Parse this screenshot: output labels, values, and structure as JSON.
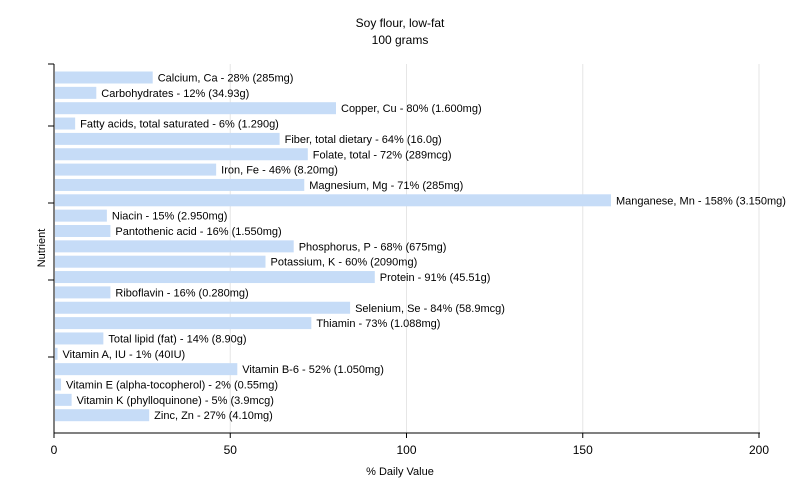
{
  "chart_data": {
    "type": "bar",
    "orientation": "horizontal",
    "title": "Soy flour, low-fat",
    "subtitle": "100 grams",
    "xlabel": "% Daily Value",
    "ylabel": "Nutrient",
    "xlim": [
      0,
      200
    ],
    "xticks": [
      0,
      50,
      100,
      150,
      200
    ],
    "grid": true,
    "bar_color": "#c6dcf7",
    "categories": [
      "Calcium, Ca - 28% (285mg)",
      "Carbohydrates - 12% (34.93g)",
      "Copper, Cu - 80% (1.600mg)",
      "Fatty acids, total saturated - 6% (1.290g)",
      "Fiber, total dietary - 64% (16.0g)",
      "Folate, total - 72% (289mcg)",
      "Iron, Fe - 46% (8.20mg)",
      "Magnesium, Mg - 71% (285mg)",
      "Manganese, Mn - 158% (3.150mg)",
      "Niacin - 15% (2.950mg)",
      "Pantothenic acid - 16% (1.550mg)",
      "Phosphorus, P - 68% (675mg)",
      "Potassium, K - 60% (2090mg)",
      "Protein - 91% (45.51g)",
      "Riboflavin - 16% (0.280mg)",
      "Selenium, Se - 84% (58.9mcg)",
      "Thiamin - 73% (1.088mg)",
      "Total lipid (fat) - 14% (8.90g)",
      "Vitamin A, IU - 1% (40IU)",
      "Vitamin B-6 - 52% (1.050mg)",
      "Vitamin E (alpha-tocopherol) - 2% (0.55mg)",
      "Vitamin K (phylloquinone) - 5% (3.9mcg)",
      "Zinc, Zn - 27% (4.10mg)"
    ],
    "values": [
      28,
      12,
      80,
      6,
      64,
      72,
      46,
      71,
      158,
      15,
      16,
      68,
      60,
      91,
      16,
      84,
      73,
      14,
      1,
      52,
      2,
      5,
      27
    ]
  }
}
